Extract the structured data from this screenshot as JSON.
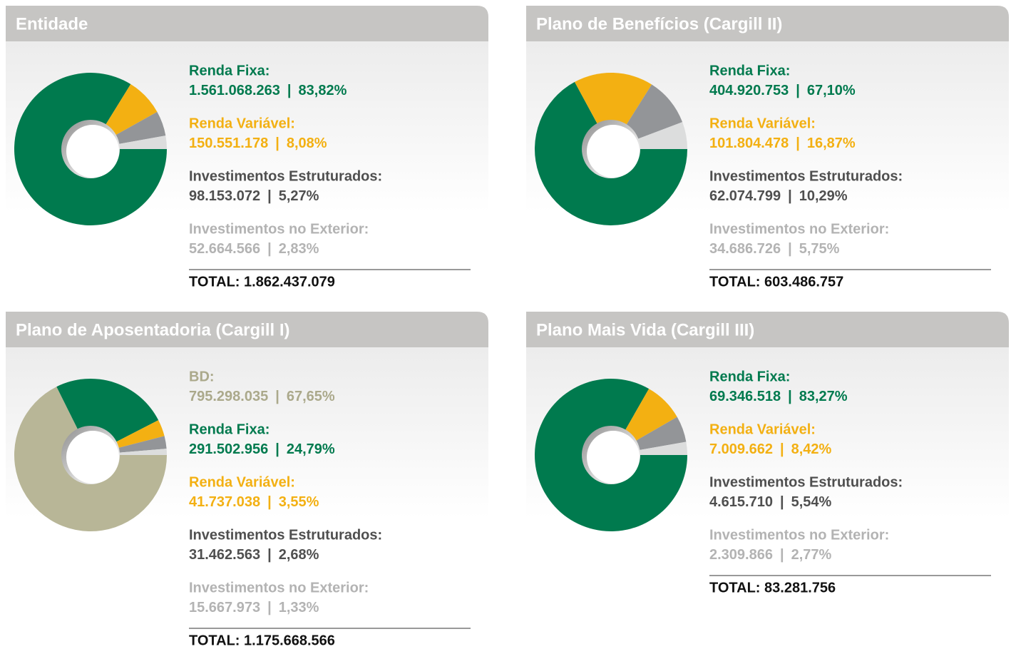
{
  "chart_data": [
    {
      "type": "pie",
      "title": "Entidade",
      "categories": [
        "Renda Fixa:",
        "Renda Variável:",
        "Investimentos Estruturados:",
        "Investimentos no Exterior:"
      ],
      "values": [
        83.82,
        8.08,
        5.27,
        2.83
      ],
      "value_labels": [
        "83,82%",
        "8,08%",
        "5,27%",
        "2,83%"
      ],
      "amounts": [
        1561068263,
        150551178,
        98153072,
        52664566
      ],
      "amount_labels": [
        "1.561.068.263",
        "150.551.178",
        "98.153.072",
        "52.664.566"
      ],
      "colors": [
        "#007a4e",
        "#f3b012",
        "#939598",
        "#dcdddd"
      ],
      "label_colors": [
        "#007a4e",
        "#f3b012",
        "#4f4f4f",
        "#b3b3b3"
      ],
      "total": {
        "value": 1862437079,
        "label": "TOTAL: 1.862.437.079"
      }
    },
    {
      "type": "pie",
      "title": "Plano de Benefícios (Cargill II)",
      "categories": [
        "Renda Fixa:",
        "Renda Variável:",
        "Investimentos Estruturados:",
        "Investimentos no Exterior:"
      ],
      "values": [
        67.1,
        16.87,
        10.29,
        5.75
      ],
      "value_labels": [
        "67,10%",
        "16,87%",
        "10,29%",
        "5,75%"
      ],
      "amounts": [
        404920753,
        101804478,
        62074799,
        34686726
      ],
      "amount_labels": [
        "404.920.753",
        "101.804.478",
        "62.074.799",
        "34.686.726"
      ],
      "colors": [
        "#007a4e",
        "#f3b012",
        "#939598",
        "#dcdddd"
      ],
      "label_colors": [
        "#007a4e",
        "#f3b012",
        "#4f4f4f",
        "#b3b3b3"
      ],
      "total": {
        "value": 603486757,
        "label": "TOTAL: 603.486.757"
      }
    },
    {
      "type": "pie",
      "title": "Plano de Aposentadoria (Cargill I)",
      "categories": [
        "BD:",
        "Renda Fixa:",
        "Renda Variável:",
        "Investimentos Estruturados:",
        "Investimentos no Exterior:"
      ],
      "values": [
        67.65,
        24.79,
        3.55,
        2.68,
        1.33
      ],
      "value_labels": [
        "67,65%",
        "24,79%",
        "3,55%",
        "2,68%",
        "1,33%"
      ],
      "amounts": [
        795298035,
        291502956,
        41737038,
        31462563,
        15667973
      ],
      "amount_labels": [
        "795.298.035",
        "291.502.956",
        "41.737.038",
        "31.462.563",
        "15.667.973"
      ],
      "colors": [
        "#b8b697",
        "#007a4e",
        "#f3b012",
        "#939598",
        "#dcdddd"
      ],
      "label_colors": [
        "#aba98b",
        "#007a4e",
        "#f3b012",
        "#4f4f4f",
        "#b3b3b3"
      ],
      "total": {
        "value": 1175668566,
        "label": "TOTAL: 1.175.668.566"
      }
    },
    {
      "type": "pie",
      "title": "Plano Mais Vida (Cargill III)",
      "categories": [
        "Renda Fixa:",
        "Renda Variável:",
        "Investimentos Estruturados:",
        "Investimentos no Exterior:"
      ],
      "values": [
        83.27,
        8.42,
        5.54,
        2.77
      ],
      "value_labels": [
        "83,27%",
        "8,42%",
        "5,54%",
        "2,77%"
      ],
      "amounts": [
        69346518,
        7009662,
        4615710,
        2309866
      ],
      "amount_labels": [
        "69.346.518",
        "7.009.662",
        "4.615.710",
        "2.309.866"
      ],
      "colors": [
        "#007a4e",
        "#f3b012",
        "#939598",
        "#dcdddd"
      ],
      "label_colors": [
        "#007a4e",
        "#f3b012",
        "#4f4f4f",
        "#b3b3b3"
      ],
      "total": {
        "value": 83281756,
        "label": "TOTAL: 83.281.756"
      }
    }
  ]
}
